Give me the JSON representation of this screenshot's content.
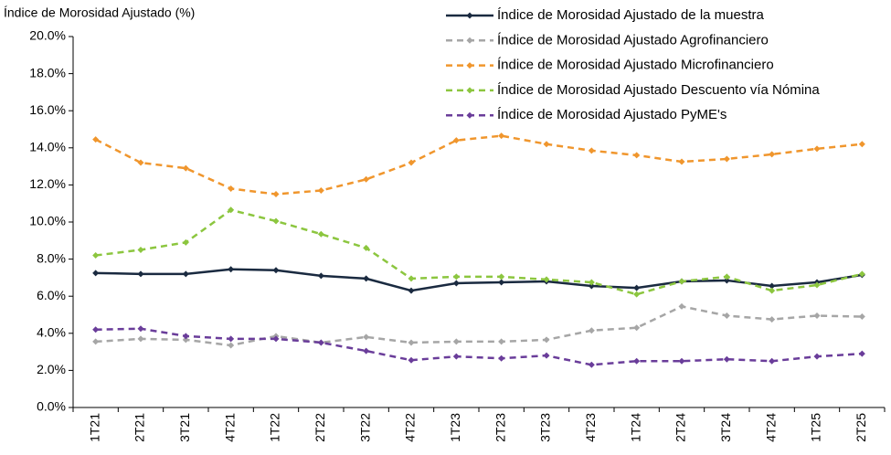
{
  "chart_data": {
    "type": "line",
    "title": "Índice de Morosidad Ajustado (%)",
    "categories": [
      "1T21",
      "2T21",
      "3T21",
      "4T21",
      "1T22",
      "2T22",
      "3T22",
      "4T22",
      "1T23",
      "2T23",
      "3T23",
      "4T23",
      "1T24",
      "2T24",
      "3T24",
      "4T24",
      "1T25",
      "2T25"
    ],
    "ylim": [
      0,
      20
    ],
    "yticks": [
      {
        "value": 0,
        "label": "0.0%"
      },
      {
        "value": 2,
        "label": "2.0%"
      },
      {
        "value": 4,
        "label": "4.0%"
      },
      {
        "value": 6,
        "label": "6.0%"
      },
      {
        "value": 8,
        "label": "8.0%"
      },
      {
        "value": 10,
        "label": "10.0%"
      },
      {
        "value": 12,
        "label": "12.0%"
      },
      {
        "value": 14,
        "label": "14.0%"
      },
      {
        "value": 16,
        "label": "16.0%"
      },
      {
        "value": 18,
        "label": "18.0%"
      },
      {
        "value": 20,
        "label": "20.0%"
      }
    ],
    "grid": false,
    "legend": "top-right",
    "series": [
      {
        "name": "Índice de Morosidad Ajustado de la muestra",
        "color": "#1a2a40",
        "dash": "solid",
        "values": [
          7.25,
          7.2,
          7.2,
          7.45,
          7.4,
          7.1,
          6.95,
          6.3,
          6.7,
          6.75,
          6.8,
          6.55,
          6.45,
          6.8,
          6.85,
          6.55,
          6.75,
          7.15
        ]
      },
      {
        "name": "Índice de Morosidad Ajustado Agrofinanciero",
        "color": "#a6a6a6",
        "dash": "dashed",
        "values": [
          3.55,
          3.7,
          3.65,
          3.35,
          3.85,
          3.5,
          3.8,
          3.5,
          3.55,
          3.55,
          3.65,
          4.15,
          4.3,
          5.45,
          4.95,
          4.75,
          4.95,
          4.9
        ]
      },
      {
        "name": "Índice de Morosidad Ajustado Microfinanciero",
        "color": "#f0962d",
        "dash": "dashed",
        "values": [
          14.45,
          13.2,
          12.9,
          11.8,
          11.5,
          11.7,
          12.3,
          13.2,
          14.4,
          14.65,
          14.2,
          13.85,
          13.6,
          13.25,
          13.4,
          13.65,
          13.95,
          14.2
        ]
      },
      {
        "name": "Índice de Morosidad Ajustado Descuento vía Nómina",
        "color": "#8cc63f",
        "dash": "dashed",
        "values": [
          8.2,
          8.5,
          8.9,
          10.65,
          10.05,
          9.35,
          8.6,
          6.95,
          7.05,
          7.05,
          6.9,
          6.75,
          6.1,
          6.8,
          7.05,
          6.3,
          6.6,
          7.2
        ]
      },
      {
        "name": "Índice de Morosidad Ajustado PyME's",
        "color": "#6a3d9a",
        "dash": "dashed",
        "values": [
          4.2,
          4.25,
          3.85,
          3.7,
          3.7,
          3.5,
          3.05,
          2.55,
          2.75,
          2.65,
          2.8,
          2.3,
          2.5,
          2.5,
          2.6,
          2.5,
          2.75,
          2.9
        ]
      }
    ]
  }
}
